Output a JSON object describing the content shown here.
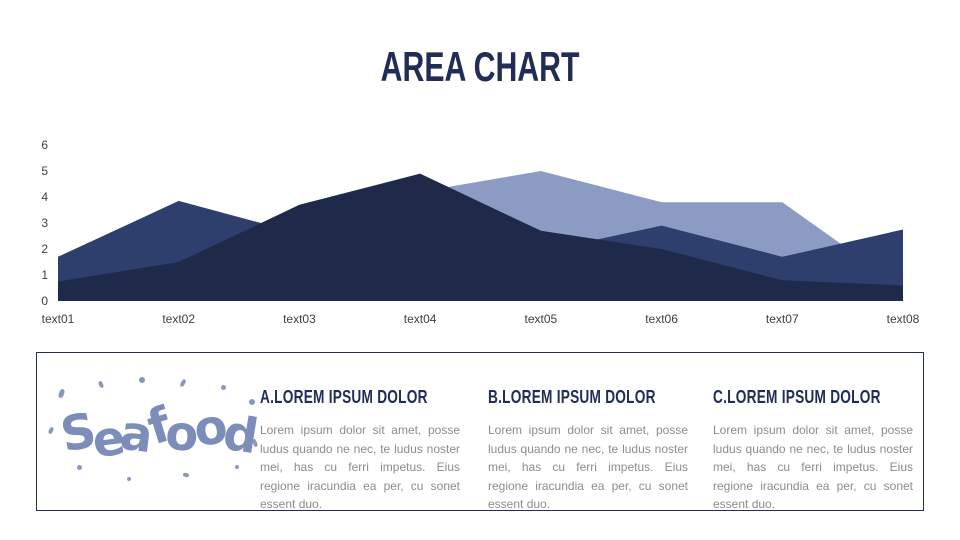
{
  "page": {
    "title": "AREA CHART"
  },
  "chart_data": {
    "type": "area",
    "title": "AREA CHART",
    "overlapping": true,
    "grid": false,
    "legend": "none",
    "categories": [
      "text01",
      "text02",
      "text03",
      "text04",
      "text05",
      "text06",
      "text07",
      "text08"
    ],
    "y_ticks": [
      0,
      1,
      2,
      3,
      4,
      5,
      6
    ],
    "ylim": [
      0,
      6
    ],
    "series": [
      {
        "name": "series-back-light",
        "color": "#8c9bc4",
        "values": [
          1.0,
          2.5,
          3.2,
          4.2,
          5.0,
          3.8,
          3.8,
          0.5
        ]
      },
      {
        "name": "series-mid-medium",
        "color": "#2f3f6d",
        "values": [
          1.7,
          3.85,
          2.6,
          2.2,
          1.9,
          2.9,
          1.7,
          2.75
        ]
      },
      {
        "name": "series-front-dark",
        "color": "#1f2a4b",
        "values": [
          0.75,
          1.5,
          3.7,
          4.9,
          2.7,
          2.0,
          0.8,
          0.6
        ]
      }
    ]
  },
  "card": {
    "logo_text": "Seafood",
    "sections": [
      {
        "heading": "A.LOREM IPSUM DOLOR",
        "body": "Lorem ipsum dolor sit amet, posse ludus quando ne nec, te ludus noster mei, has cu ferri impetus. Eius regione iracundia ea per, cu sonet essent duo."
      },
      {
        "heading": "B.LOREM IPSUM DOLOR",
        "body": "Lorem ipsum dolor sit amet, posse ludus quando ne nec, te ludus noster mei, has cu ferri impetus. Eius regione iracundia ea per, cu sonet essent duo."
      },
      {
        "heading": "C.LOREM IPSUM DOLOR",
        "body": "Lorem ipsum dolor sit amet, posse ludus quando ne nec, te ludus noster mei, has cu ferri impetus. Eius regione iracundia ea per, cu sonet essent duo."
      }
    ]
  },
  "colors": {
    "accent_navy": "#212d55",
    "axis_text": "#3d3f45",
    "body_text": "#8c8c8c",
    "logo_blue": "#7d8db9",
    "card_border": "#212d55"
  }
}
